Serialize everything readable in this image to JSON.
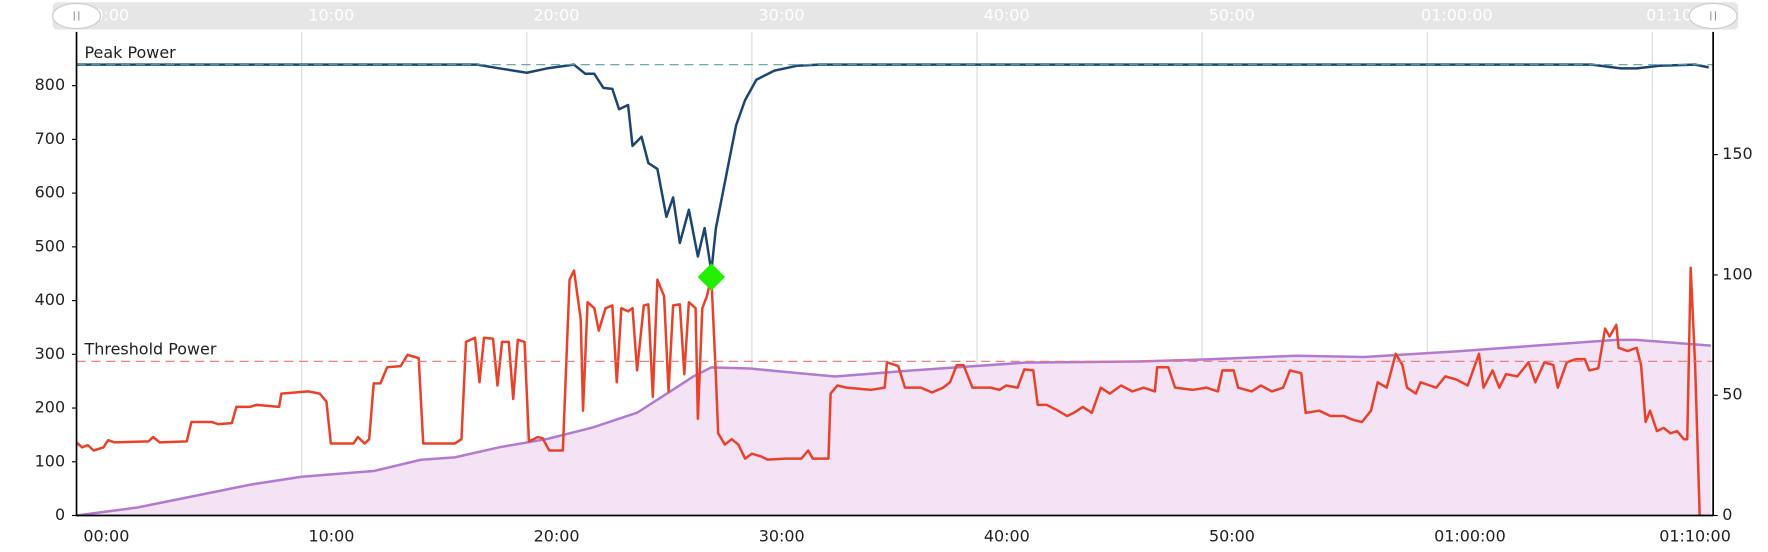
{
  "chart_data": {
    "type": "line",
    "xlim": [
      0,
      72.7
    ],
    "xticks": [
      {
        "value": 0,
        "label": "00:00"
      },
      {
        "value": 10,
        "label": "10:00"
      },
      {
        "value": 20,
        "label": "20:00"
      },
      {
        "value": 30,
        "label": "30:00"
      },
      {
        "value": 40,
        "label": "40:00"
      },
      {
        "value": 50,
        "label": "50:00"
      },
      {
        "value": 60,
        "label": "01:00:00"
      },
      {
        "value": 70,
        "label": "01:10:00"
      }
    ],
    "ylim": [
      0,
      900
    ],
    "yticks": [
      0,
      100,
      200,
      300,
      400,
      500,
      600,
      700,
      800
    ],
    "y2lim": [
      0,
      201
    ],
    "y2ticks": [
      0,
      50,
      100,
      150
    ],
    "grid": true,
    "reference_lines": [
      {
        "label": "Peak Power",
        "value": 839,
        "color": "#5b9ea6"
      },
      {
        "label": "Threshold Power",
        "value": 287,
        "color": "#e87474"
      }
    ],
    "marker": {
      "x": 28.2,
      "value": 444,
      "color": "#22ee00"
    },
    "series": [
      {
        "color": "#b27bd0",
        "fill_color": "#f3e3f5",
        "axis": "y2",
        "x": [
          0,
          2.7,
          5.7,
          7.7,
          10,
          11.3,
          13.2,
          15.3,
          16.8,
          18.8,
          20.9,
          22.9,
          24.9,
          26.4,
          27.4,
          28.2,
          29.9,
          32,
          33.7,
          37,
          42.1,
          47.1,
          50.2,
          54.2,
          57.2,
          61.3,
          64.8,
          68.4,
          69.3,
          72.6
        ],
        "values": [
          0,
          3.3,
          9,
          12.8,
          16.1,
          17.1,
          18.5,
          23.2,
          24.2,
          28.4,
          31.8,
          36.5,
          42.7,
          51.7,
          57.8,
          61.6,
          61.1,
          59.2,
          57.8,
          60.2,
          63.5,
          64,
          64.9,
          66.4,
          65.9,
          68.2,
          70.6,
          73,
          73,
          70.6
        ]
      },
      {
        "color": "#1b4674",
        "x": [
          0,
          17.8,
          18.8,
          20,
          20.9,
          22.1,
          22.6,
          23,
          23.4,
          23.8,
          24.1,
          24.5,
          24.7,
          25.1,
          25.4,
          25.8,
          26.2,
          26.5,
          26.8,
          27.2,
          27.6,
          27.9,
          28.2,
          28.4,
          28.9,
          29.3,
          29.7,
          30.2,
          31,
          32,
          33,
          67.3,
          68.6,
          69.3,
          70.3,
          71.9,
          72.5
        ],
        "values": [
          839,
          839,
          832,
          824,
          832,
          839,
          822,
          822,
          796,
          794,
          756,
          764,
          688,
          705,
          656,
          645,
          556,
          592,
          507,
          569,
          482,
          535,
          454,
          535,
          641,
          726,
          773,
          811,
          828,
          837,
          839,
          839,
          832,
          832,
          837,
          839,
          834
        ]
      },
      {
        "color": "#e8432a",
        "x": [
          0,
          0.25,
          0.5,
          0.76,
          1.2,
          1.4,
          1.7,
          3.2,
          3.4,
          3.7,
          4.9,
          5.1,
          6,
          6.3,
          6.9,
          7.1,
          7.7,
          8,
          9,
          9.1,
          10.3,
          10.8,
          11.1,
          11.3,
          12.3,
          12.5,
          12.8,
          13,
          13.2,
          13.5,
          13.8,
          14.4,
          14.7,
          15.2,
          15.4,
          16.8,
          17.1,
          17.3,
          17.7,
          17.9,
          18.1,
          18.5,
          18.7,
          18.9,
          19.2,
          19.4,
          19.6,
          19.9,
          20.1,
          20.5,
          20.7,
          21,
          21.6,
          21.9,
          22.1,
          22.4,
          22.5,
          22.7,
          23,
          23.2,
          23.5,
          23.8,
          24,
          24.2,
          24.5,
          24.7,
          24.9,
          25.2,
          25.4,
          25.6,
          25.8,
          26.1,
          26.3,
          26.5,
          26.8,
          27,
          27.2,
          27.5,
          27.6,
          27.8,
          28,
          28.2,
          28.4,
          28.5,
          28.8,
          29.1,
          29.4,
          29.7,
          30,
          30.4,
          30.7,
          31.5,
          32.2,
          32.5,
          32.7,
          33.4,
          33.5,
          33.8,
          34.2,
          35.3,
          35.9,
          36,
          36.5,
          36.8,
          37.5,
          38,
          38.5,
          38.8,
          39.1,
          39.4,
          39.8,
          40.6,
          41,
          41.3,
          41.8,
          42.1,
          42.5,
          42.7,
          43.1,
          43.6,
          44,
          44.3,
          44.7,
          45.1,
          45.5,
          45.9,
          46.4,
          46.9,
          47.4,
          47.9,
          48,
          48.5,
          48.8,
          49.6,
          50.2,
          50.7,
          50.9,
          51.4,
          51.6,
          52.2,
          52.6,
          53.1,
          53.6,
          53.9,
          54.4,
          54.6,
          55.2,
          55.7,
          56.3,
          56.7,
          57.1,
          57.5,
          57.8,
          58.2,
          58.6,
          58.9,
          59.1,
          59.5,
          59.7,
          60.4,
          60.8,
          61.3,
          61.8,
          62.3,
          62.5,
          62.9,
          63.2,
          63.5,
          64,
          64.5,
          64.8,
          65.2,
          65.6,
          65.8,
          66.2,
          66.6,
          67,
          67.2,
          67.6,
          67.9,
          68.1,
          68.4,
          68.5,
          68.9,
          69.3,
          69.5,
          69.7,
          69.9,
          70.2,
          70.5,
          70.8,
          71.1,
          71.4,
          71.55,
          71.7,
          71.9,
          72.1
        ],
        "values": [
          136,
          127,
          131,
          121,
          127,
          140,
          136,
          138,
          146,
          136,
          138,
          174,
          174,
          170,
          172,
          202,
          202,
          206,
          202,
          227,
          231,
          227,
          212,
          134,
          134,
          146,
          134,
          142,
          246,
          246,
          276,
          278,
          299,
          293,
          134,
          134,
          142,
          323,
          331,
          248,
          331,
          329,
          242,
          323,
          323,
          217,
          327,
          323,
          138,
          146,
          144,
          121,
          121,
          439,
          456,
          365,
          195,
          397,
          386,
          344,
          386,
          391,
          248,
          386,
          380,
          386,
          270,
          391,
          393,
          221,
          439,
          408,
          231,
          391,
          393,
          263,
          397,
          386,
          180,
          386,
          408,
          444,
          259,
          153,
          132,
          142,
          132,
          106,
          115,
          110,
          104,
          106,
          106,
          121,
          106,
          106,
          227,
          242,
          238,
          234,
          238,
          285,
          278,
          238,
          238,
          229,
          238,
          248,
          280,
          280,
          238,
          238,
          234,
          242,
          238,
          272,
          270,
          206,
          206,
          195,
          185,
          191,
          202,
          191,
          238,
          227,
          242,
          231,
          238,
          231,
          276,
          276,
          238,
          234,
          238,
          231,
          270,
          270,
          238,
          231,
          242,
          231,
          238,
          270,
          265,
          191,
          195,
          185,
          185,
          178,
          174,
          195,
          248,
          238,
          301,
          280,
          238,
          227,
          248,
          238,
          259,
          253,
          242,
          301,
          238,
          270,
          238,
          263,
          259,
          285,
          248,
          285,
          280,
          238,
          285,
          291,
          291,
          270,
          274,
          348,
          333,
          355,
          312,
          306,
          312,
          280,
          174,
          195,
          157,
          163,
          153,
          157,
          142,
          142,
          461,
          280,
          0
        ]
      }
    ]
  }
}
